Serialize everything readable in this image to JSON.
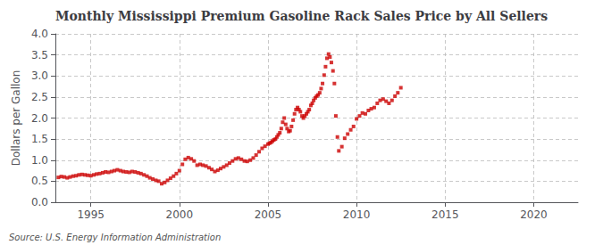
{
  "chart_data": {
    "type": "scatter",
    "title": "Monthly Mississippi Premium Gasoline Rack Sales Price by All Sellers",
    "ylabel": "Dollars per Gallon",
    "annotations": [
      "Source: U.S. Energy Information Administration"
    ],
    "color": "#cc0000",
    "marker": "square",
    "grid": true,
    "xlim": [
      1993.0,
      2022.5
    ],
    "ylim": [
      0.0,
      4.0
    ],
    "xticks": [
      1995,
      2000,
      2005,
      2010,
      2015,
      2020
    ],
    "yticks": [
      {
        "value": 0.0,
        "label": "0.0"
      },
      0.5,
      {
        "value": 1.0,
        "label": "1.0"
      },
      1.5,
      {
        "value": 2.0,
        "label": "2.0"
      },
      2.5,
      {
        "value": 3.0,
        "label": "3.0"
      },
      3.5,
      {
        "value": 4.0,
        "label": "4.0"
      }
    ],
    "x": [
      1993.17,
      1993.33,
      1993.5,
      1993.67,
      1993.83,
      1994.0,
      1994.17,
      1994.33,
      1994.5,
      1994.67,
      1994.83,
      1995.0,
      1995.17,
      1995.33,
      1995.5,
      1995.67,
      1995.83,
      1996.0,
      1996.17,
      1996.33,
      1996.5,
      1996.67,
      1996.83,
      1997.0,
      1997.17,
      1997.33,
      1997.5,
      1997.67,
      1997.83,
      1998.0,
      1998.17,
      1998.33,
      1998.5,
      1998.67,
      1998.83,
      1999.0,
      1999.17,
      1999.33,
      1999.5,
      1999.67,
      1999.83,
      2000.0,
      2000.17,
      2000.33,
      2000.5,
      2000.67,
      2000.83,
      2001.0,
      2001.17,
      2001.33,
      2001.5,
      2001.67,
      2001.83,
      2002.0,
      2002.17,
      2002.33,
      2002.5,
      2002.67,
      2002.83,
      2003.0,
      2003.17,
      2003.33,
      2003.5,
      2003.67,
      2003.83,
      2004.0,
      2004.17,
      2004.33,
      2004.5,
      2004.67,
      2004.83,
      2005.0,
      2005.08,
      2005.17,
      2005.25,
      2005.33,
      2005.42,
      2005.5,
      2005.58,
      2005.67,
      2005.75,
      2005.83,
      2005.92,
      2006.0,
      2006.08,
      2006.17,
      2006.25,
      2006.33,
      2006.42,
      2006.5,
      2006.58,
      2006.67,
      2006.75,
      2006.83,
      2006.92,
      2007.0,
      2007.08,
      2007.17,
      2007.25,
      2007.33,
      2007.42,
      2007.5,
      2007.58,
      2007.67,
      2007.75,
      2007.83,
      2007.92,
      2008.0,
      2008.08,
      2008.17,
      2008.25,
      2008.33,
      2008.42,
      2008.5,
      2008.58,
      2008.67,
      2008.75,
      2008.83,
      2008.92,
      2009.0,
      2009.17,
      2009.33,
      2009.5,
      2009.67,
      2009.83,
      2010.0,
      2010.17,
      2010.33,
      2010.5,
      2010.67,
      2010.83,
      2011.0,
      2011.17,
      2011.33,
      2011.5,
      2011.67,
      2011.83,
      2012.0,
      2012.17,
      2012.33,
      2012.5
    ],
    "values": [
      0.59,
      0.61,
      0.6,
      0.58,
      0.6,
      0.62,
      0.63,
      0.65,
      0.66,
      0.65,
      0.64,
      0.63,
      0.65,
      0.67,
      0.68,
      0.7,
      0.72,
      0.71,
      0.73,
      0.75,
      0.77,
      0.75,
      0.73,
      0.72,
      0.71,
      0.73,
      0.72,
      0.7,
      0.68,
      0.65,
      0.62,
      0.58,
      0.55,
      0.52,
      0.5,
      0.44,
      0.47,
      0.52,
      0.57,
      0.62,
      0.68,
      0.75,
      0.9,
      1.02,
      1.06,
      1.03,
      0.98,
      0.88,
      0.9,
      0.88,
      0.86,
      0.82,
      0.78,
      0.73,
      0.76,
      0.8,
      0.84,
      0.88,
      0.93,
      0.98,
      1.03,
      1.05,
      1.02,
      0.98,
      0.97,
      1.0,
      1.05,
      1.12,
      1.2,
      1.28,
      1.33,
      1.38,
      1.4,
      1.42,
      1.45,
      1.48,
      1.5,
      1.55,
      1.6,
      1.65,
      1.75,
      1.9,
      2.0,
      1.85,
      1.75,
      1.68,
      1.7,
      1.8,
      1.95,
      2.1,
      2.2,
      2.25,
      2.2,
      2.15,
      2.05,
      2.0,
      2.05,
      2.1,
      2.15,
      2.2,
      2.3,
      2.35,
      2.42,
      2.48,
      2.52,
      2.55,
      2.6,
      2.7,
      2.82,
      3.02,
      3.22,
      3.42,
      3.52,
      3.45,
      3.32,
      3.12,
      2.82,
      2.05,
      1.55,
      1.22,
      1.32,
      1.52,
      1.62,
      1.72,
      1.8,
      1.98,
      2.05,
      2.12,
      2.1,
      2.18,
      2.22,
      2.25,
      2.35,
      2.42,
      2.45,
      2.4,
      2.35,
      2.42,
      2.52,
      2.6,
      2.72
    ]
  }
}
